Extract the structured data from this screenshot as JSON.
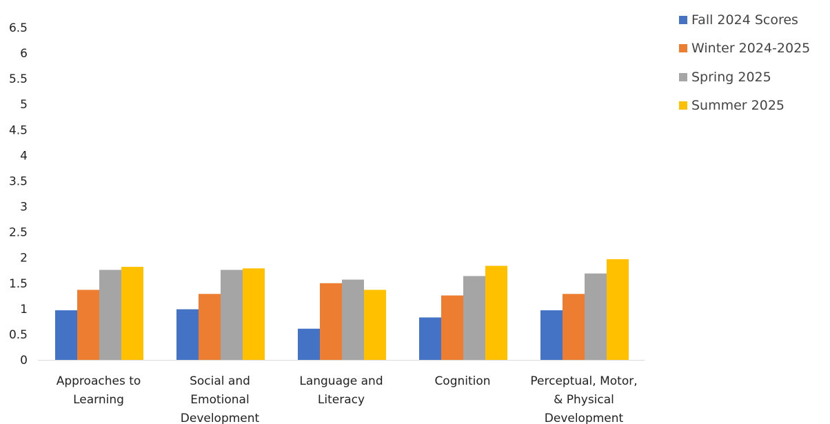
{
  "chart_data": {
    "type": "bar",
    "title": "",
    "xlabel": "",
    "ylabel": "",
    "ylim": [
      0,
      6.5
    ],
    "yticks": [
      "0",
      "0.5",
      "1",
      "1.5",
      "2",
      "2.5",
      "3",
      "3.5",
      "4",
      "4.5",
      "5",
      "5.5",
      "6",
      "6.5"
    ],
    "categories": [
      [
        "Approaches to",
        "Learning"
      ],
      [
        "Social and",
        "Emotional",
        "Development"
      ],
      [
        "Language and",
        "Literacy"
      ],
      [
        "Cognition"
      ],
      [
        "Perceptual, Motor,",
        "& Physical",
        "Development"
      ]
    ],
    "series": [
      {
        "name": "Fall 2024 Scores",
        "color": "#4472C4",
        "values": [
          0.97,
          0.99,
          0.61,
          0.83,
          0.97
        ]
      },
      {
        "name": "Winter 2024-2025",
        "color": "#ED7D31",
        "values": [
          1.37,
          1.29,
          1.5,
          1.26,
          1.29
        ]
      },
      {
        "name": "Spring 2025",
        "color": "#A5A5A5",
        "values": [
          1.76,
          1.76,
          1.57,
          1.64,
          1.69
        ]
      },
      {
        "name": "Summer 2025",
        "color": "#FFC000",
        "values": [
          1.82,
          1.79,
          1.37,
          1.84,
          1.97
        ]
      }
    ],
    "grid": false,
    "legend_position": "top-right"
  }
}
